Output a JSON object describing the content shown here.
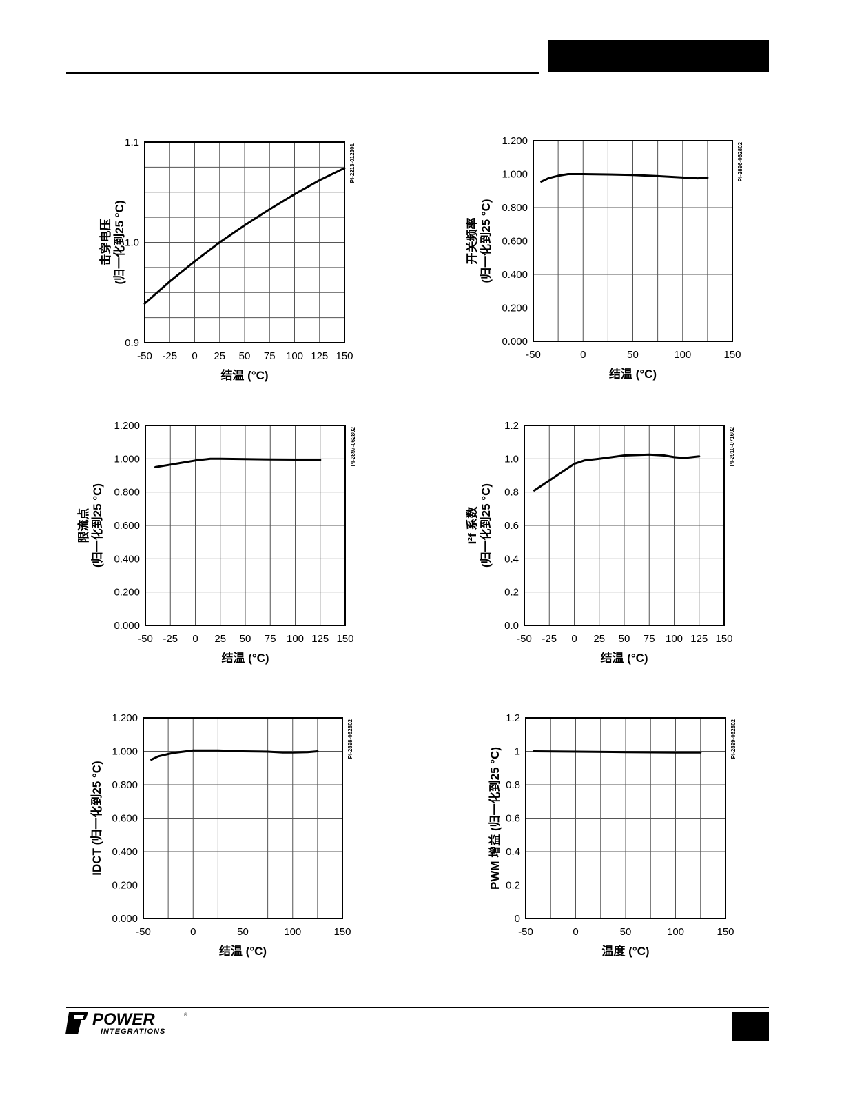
{
  "header": {},
  "footer": {
    "logo_top": "POWER",
    "logo_bottom": "INTEGRATIONS",
    "logo_reg": "®"
  },
  "chart_data": [
    {
      "type": "line",
      "plot_id": "PI-2213-012301",
      "xlabel": "结温 (°C)",
      "ylabel_lines": [
        "击穿电压",
        "(归一化到25 °C)"
      ],
      "x_ticks": [
        "-50",
        "-25",
        "0",
        "25",
        "50",
        "75",
        "100",
        "125",
        "150"
      ],
      "y_ticks": [
        "0.9",
        "1.0",
        "1.1"
      ],
      "xlim": [
        -50,
        150
      ],
      "ylim": [
        0.9,
        1.1
      ],
      "x_grid_step": 25,
      "y_grid_step": 0.025,
      "grid": true,
      "series": [
        {
          "x": [
            -50,
            -25,
            0,
            25,
            50,
            75,
            100,
            125,
            150
          ],
          "y": [
            0.939,
            0.961,
            0.981,
            1.0,
            1.017,
            1.033,
            1.048,
            1.062,
            1.074
          ]
        }
      ]
    },
    {
      "type": "line",
      "plot_id": "PI-2896-062802",
      "xlabel": "结温 (°C)",
      "ylabel_lines": [
        "开关频率",
        "(归一化到25 °C)"
      ],
      "x_ticks": [
        "-50",
        "0",
        "50",
        "100",
        "150"
      ],
      "y_ticks": [
        "0.000",
        "0.200",
        "0.400",
        "0.600",
        "0.800",
        "1.000",
        "1.200"
      ],
      "xlim": [
        -50,
        150
      ],
      "ylim": [
        0,
        1.2
      ],
      "x_grid_step": 25,
      "y_grid_step": 0.2,
      "grid": true,
      "series": [
        {
          "x": [
            -42,
            -35,
            -25,
            -15,
            0,
            25,
            50,
            75,
            100,
            115,
            125
          ],
          "y": [
            0.955,
            0.975,
            0.99,
            1.0,
            1.0,
            0.998,
            0.995,
            0.988,
            0.98,
            0.975,
            0.978
          ]
        }
      ]
    },
    {
      "type": "line",
      "plot_id": "PI-2897-062802",
      "xlabel": "结温 (°C)",
      "ylabel_lines": [
        "限流点",
        "(归一化到25 °C)"
      ],
      "x_ticks": [
        "-50",
        "-25",
        "0",
        "25",
        "50",
        "75",
        "100",
        "125",
        "150"
      ],
      "y_ticks": [
        "0.000",
        "0.200",
        "0.400",
        "0.600",
        "0.800",
        "1.000",
        "1.200"
      ],
      "xlim": [
        -50,
        150
      ],
      "ylim": [
        0,
        1.2
      ],
      "x_grid_step": 25,
      "y_grid_step": 0.2,
      "grid": true,
      "series": [
        {
          "x": [
            -40,
            -25,
            0,
            15,
            25,
            50,
            75,
            100,
            125
          ],
          "y": [
            0.95,
            0.965,
            0.99,
            1.0,
            1.0,
            0.998,
            0.996,
            0.995,
            0.993
          ]
        }
      ]
    },
    {
      "type": "line",
      "plot_id": "PI-2910-071602",
      "xlabel": "结温 (°C)",
      "ylabel_lines": [
        "I²f 系数",
        "(归一化到25 °C)"
      ],
      "x_ticks": [
        "-50",
        "-25",
        "0",
        "25",
        "50",
        "75",
        "100",
        "125",
        "150"
      ],
      "y_ticks": [
        "0.0",
        "0.2",
        "0.4",
        "0.6",
        "0.8",
        "1.0",
        "1.2"
      ],
      "xlim": [
        -50,
        150
      ],
      "ylim": [
        0,
        1.2
      ],
      "x_grid_step": 25,
      "y_grid_step": 0.2,
      "grid": true,
      "series": [
        {
          "x": [
            -40,
            -25,
            -10,
            0,
            10,
            25,
            50,
            75,
            90,
            100,
            110,
            125
          ],
          "y": [
            0.81,
            0.87,
            0.93,
            0.97,
            0.99,
            1.0,
            1.02,
            1.025,
            1.02,
            1.01,
            1.005,
            1.015
          ]
        }
      ]
    },
    {
      "type": "line",
      "plot_id": "PI-2898-062802",
      "xlabel": "结温 (°C)",
      "ylabel_lines": [
        "IDCT (归一化到25 °C)"
      ],
      "x_ticks": [
        "-50",
        "0",
        "50",
        "100",
        "150"
      ],
      "y_ticks": [
        "0.000",
        "0.200",
        "0.400",
        "0.600",
        "0.800",
        "1.000",
        "1.200"
      ],
      "xlim": [
        -50,
        150
      ],
      "ylim": [
        0,
        1.2
      ],
      "x_grid_step": 25,
      "y_grid_step": 0.2,
      "grid": true,
      "series": [
        {
          "x": [
            -42,
            -35,
            -20,
            0,
            25,
            50,
            75,
            90,
            100,
            115,
            125
          ],
          "y": [
            0.95,
            0.97,
            0.99,
            1.005,
            1.005,
            1.0,
            0.998,
            0.993,
            0.993,
            0.995,
            1.0
          ]
        }
      ]
    },
    {
      "type": "line",
      "plot_id": "PI-2899-062802",
      "xlabel": "温度 (°C)",
      "ylabel_lines": [
        "PWM 增益 (归一化到25 °C)"
      ],
      "x_ticks": [
        "-50",
        "0",
        "50",
        "100",
        "150"
      ],
      "y_ticks": [
        "0",
        "0.2",
        "0.4",
        "0.6",
        "0.8",
        "1",
        "1.2"
      ],
      "xlim": [
        -50,
        150
      ],
      "ylim": [
        0,
        1.2
      ],
      "x_grid_step": 25,
      "y_grid_step": 0.2,
      "grid": true,
      "series": [
        {
          "x": [
            -42,
            0,
            50,
            100,
            125
          ],
          "y": [
            1.0,
            0.998,
            0.995,
            0.993,
            0.993
          ]
        }
      ]
    }
  ]
}
